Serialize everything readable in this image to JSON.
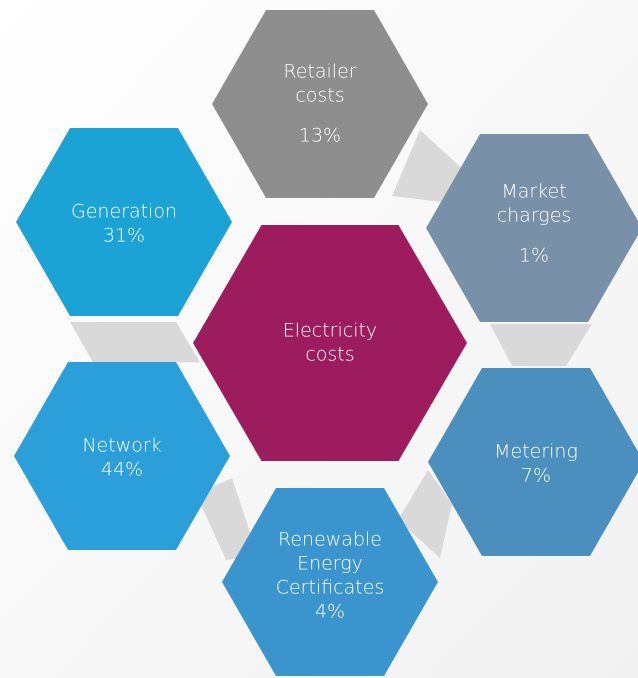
{
  "center": {
    "lines": [
      "Electricity",
      "costs"
    ]
  },
  "nodes": [
    {
      "lines": [
        "Retailer",
        "costs"
      ],
      "value": "13%"
    },
    {
      "lines": [
        "Market",
        "charges"
      ],
      "value": "1%"
    },
    {
      "lines": [
        "Generation"
      ],
      "value": "31%"
    },
    {
      "lines": [
        "Network"
      ],
      "value": "44%"
    },
    {
      "lines": [
        "Metering"
      ],
      "value": "7%"
    },
    {
      "lines": [
        "Renewable",
        "Energy",
        "Certificates"
      ],
      "value": "4%"
    }
  ]
}
